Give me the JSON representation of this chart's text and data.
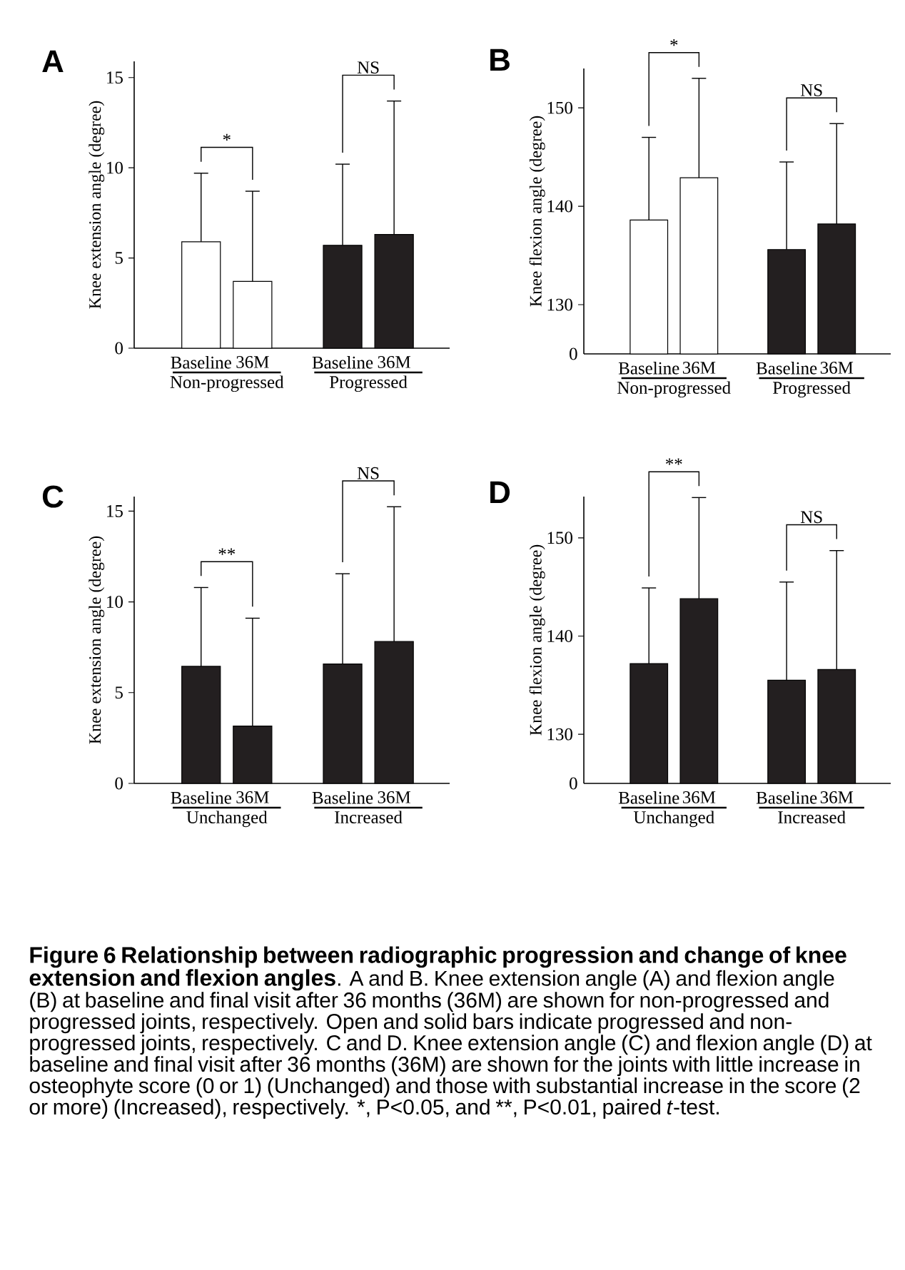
{
  "chart_data": [
    {
      "type": "bar",
      "title": "A",
      "ylabel": "Knee extension angle (degree)",
      "categories": [
        "Baseline",
        "36M",
        "Baseline",
        "36M"
      ],
      "values": [
        5.9,
        3.7,
        5.7,
        6.3
      ],
      "colors": [
        "#ffffff",
        "#ffffff",
        "#231f20",
        "#231f20"
      ],
      "errors": [
        [
          5.9,
          9.7
        ],
        [
          3.7,
          8.7
        ],
        [
          5.7,
          10.2
        ],
        [
          6.3,
          13.7
        ]
      ],
      "ylim": [
        0,
        15.9
      ],
      "yticks": [
        0,
        5,
        10,
        15
      ],
      "annotations": [
        "*",
        "NS",
        "Non-progressed",
        "Progressed"
      ]
    },
    {
      "type": "bar",
      "title": "B",
      "ylabel": "Knee flexion angle (degree)",
      "categories": [
        "Baseline",
        "36M",
        "Baseline",
        "36M"
      ],
      "values": [
        138.6,
        142.9,
        135.6,
        138.2
      ],
      "colors": [
        "#ffffff",
        "#ffffff",
        "#231f20",
        "#231f20"
      ],
      "errors": [
        [
          138.6,
          147.0
        ],
        [
          142.9,
          153.0
        ],
        [
          135.6,
          144.5
        ],
        [
          138.2,
          148.4
        ]
      ],
      "ylim": [
        125,
        154
      ],
      "yticks": [
        130,
        140,
        150
      ],
      "annotations": [
        "*",
        "NS",
        "Non-progressed",
        "Progressed",
        "0"
      ]
    },
    {
      "type": "bar",
      "title": "C",
      "ylabel": "Knee extension angle (degree)",
      "categories": [
        "Baseline",
        "36M",
        "Baseline",
        "36M"
      ],
      "values": [
        6.45,
        3.16,
        6.58,
        7.82
      ],
      "colors": [
        "#231f20",
        "#231f20",
        "#231f20",
        "#231f20"
      ],
      "errors": [
        [
          6.45,
          10.79
        ],
        [
          3.16,
          9.1
        ],
        [
          6.58,
          11.55
        ],
        [
          7.82,
          15.24
        ]
      ],
      "ylim": [
        0,
        15.8
      ],
      "yticks": [
        0,
        5,
        10,
        15
      ],
      "annotations": [
        "**",
        "NS",
        "Unchanged",
        "Increased"
      ]
    },
    {
      "type": "bar",
      "title": "D",
      "ylabel": "Knee flexion angle (degree)",
      "categories": [
        "Baseline",
        "36M",
        "Baseline",
        "36M"
      ],
      "values": [
        137.2,
        143.8,
        135.5,
        136.6
      ],
      "colors": [
        "#231f20",
        "#231f20",
        "#231f20",
        "#231f20"
      ],
      "errors": [
        [
          137.2,
          144.9
        ],
        [
          143.8,
          154.1
        ],
        [
          135.5,
          145.5
        ],
        [
          136.6,
          148.7
        ]
      ],
      "ylim": [
        125,
        154.2
      ],
      "yticks": [
        130,
        140,
        150
      ],
      "annotations": [
        "**",
        "NS",
        "Unchanged",
        "Increased",
        "0"
      ]
    },
    {
      "type": "other",
      "title": "Figure 6 Relationship between radiographic progression and change of knee extension and flexion angles",
      "annotations": [
        ". A and B. Knee extension angle (A) and flexion angle (B) at baseline and final visit after 36 months (36M) are shown for non-progressed and progressed joints, respectively. Open and solid bars indicate progressed and non-progressed joints, respectively. C and D. Knee extension angle (C) and flexion angle (D) at baseline and final visit after 36 months (36M) are shown for the joints with little increase in osteophyte score (0 or 1) (Unchanged) and those with substantial increase in the score (2 or more) (Increased), respectively. ",
        "*",
        ", P<0.05, and ",
        "**",
        ", P<0.01, paired *t*-test."
      ]
    }
  ]
}
